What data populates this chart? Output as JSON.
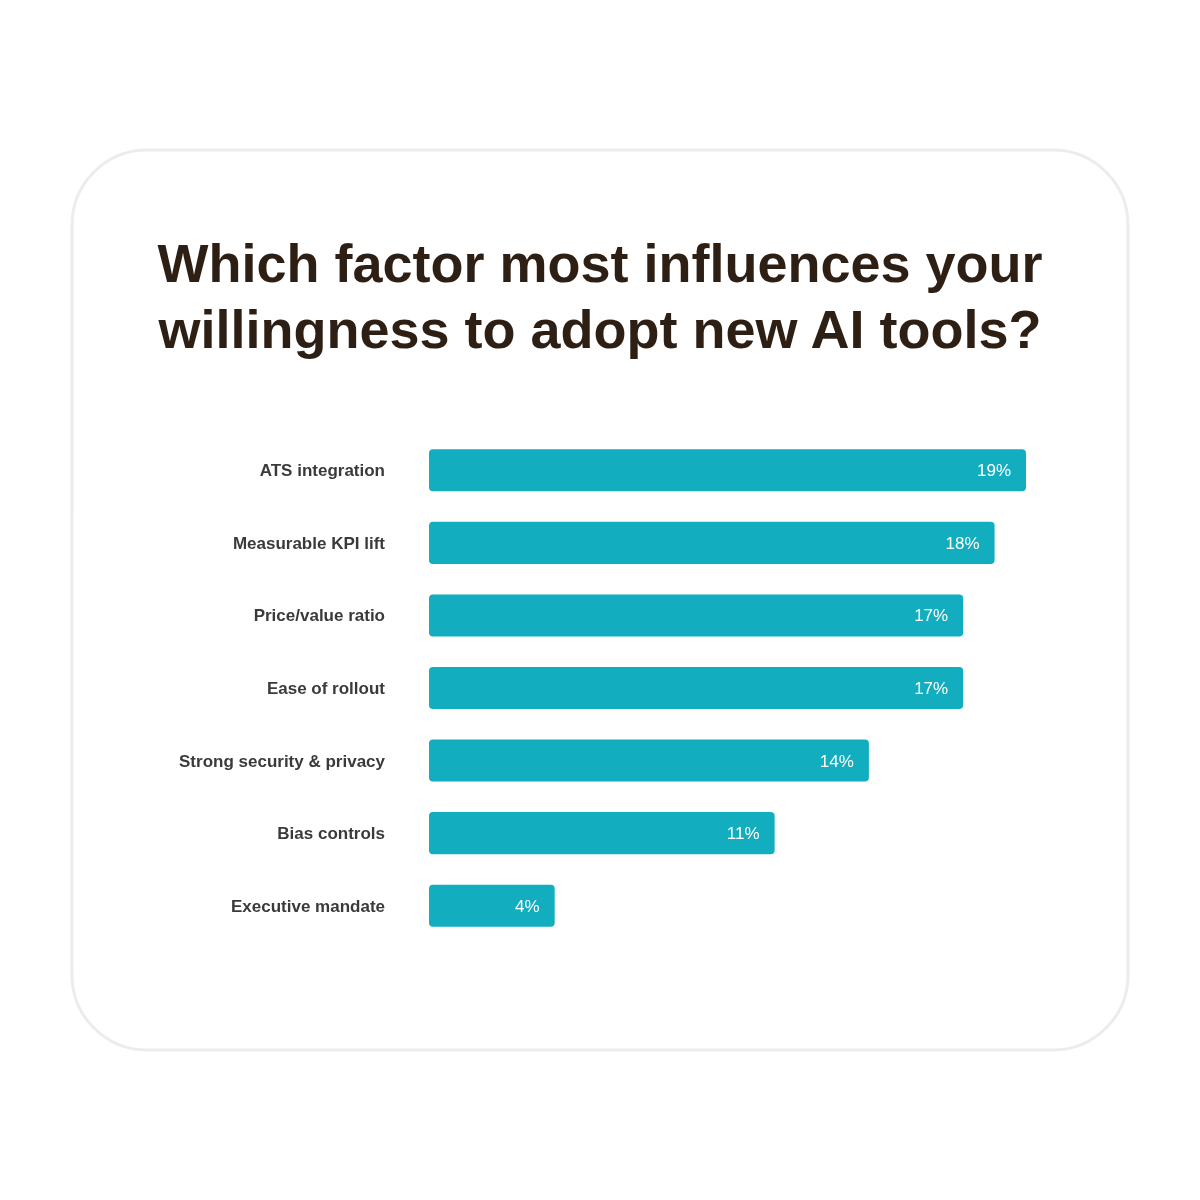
{
  "chart_data": {
    "type": "bar",
    "orientation": "horizontal",
    "title": "Which factor most influences your willingness to adopt new AI tools?",
    "categories": [
      "ATS integration",
      "Measurable KPI lift",
      "Price/value ratio",
      "Ease of rollout",
      "Strong security & privacy",
      "Bias controls",
      "Executive mandate"
    ],
    "values": [
      19,
      18,
      17,
      17,
      14,
      11,
      4
    ],
    "value_labels": [
      "19%",
      "18%",
      "17%",
      "17%",
      "14%",
      "11%",
      "4%"
    ],
    "color": "#12adbf"
  }
}
